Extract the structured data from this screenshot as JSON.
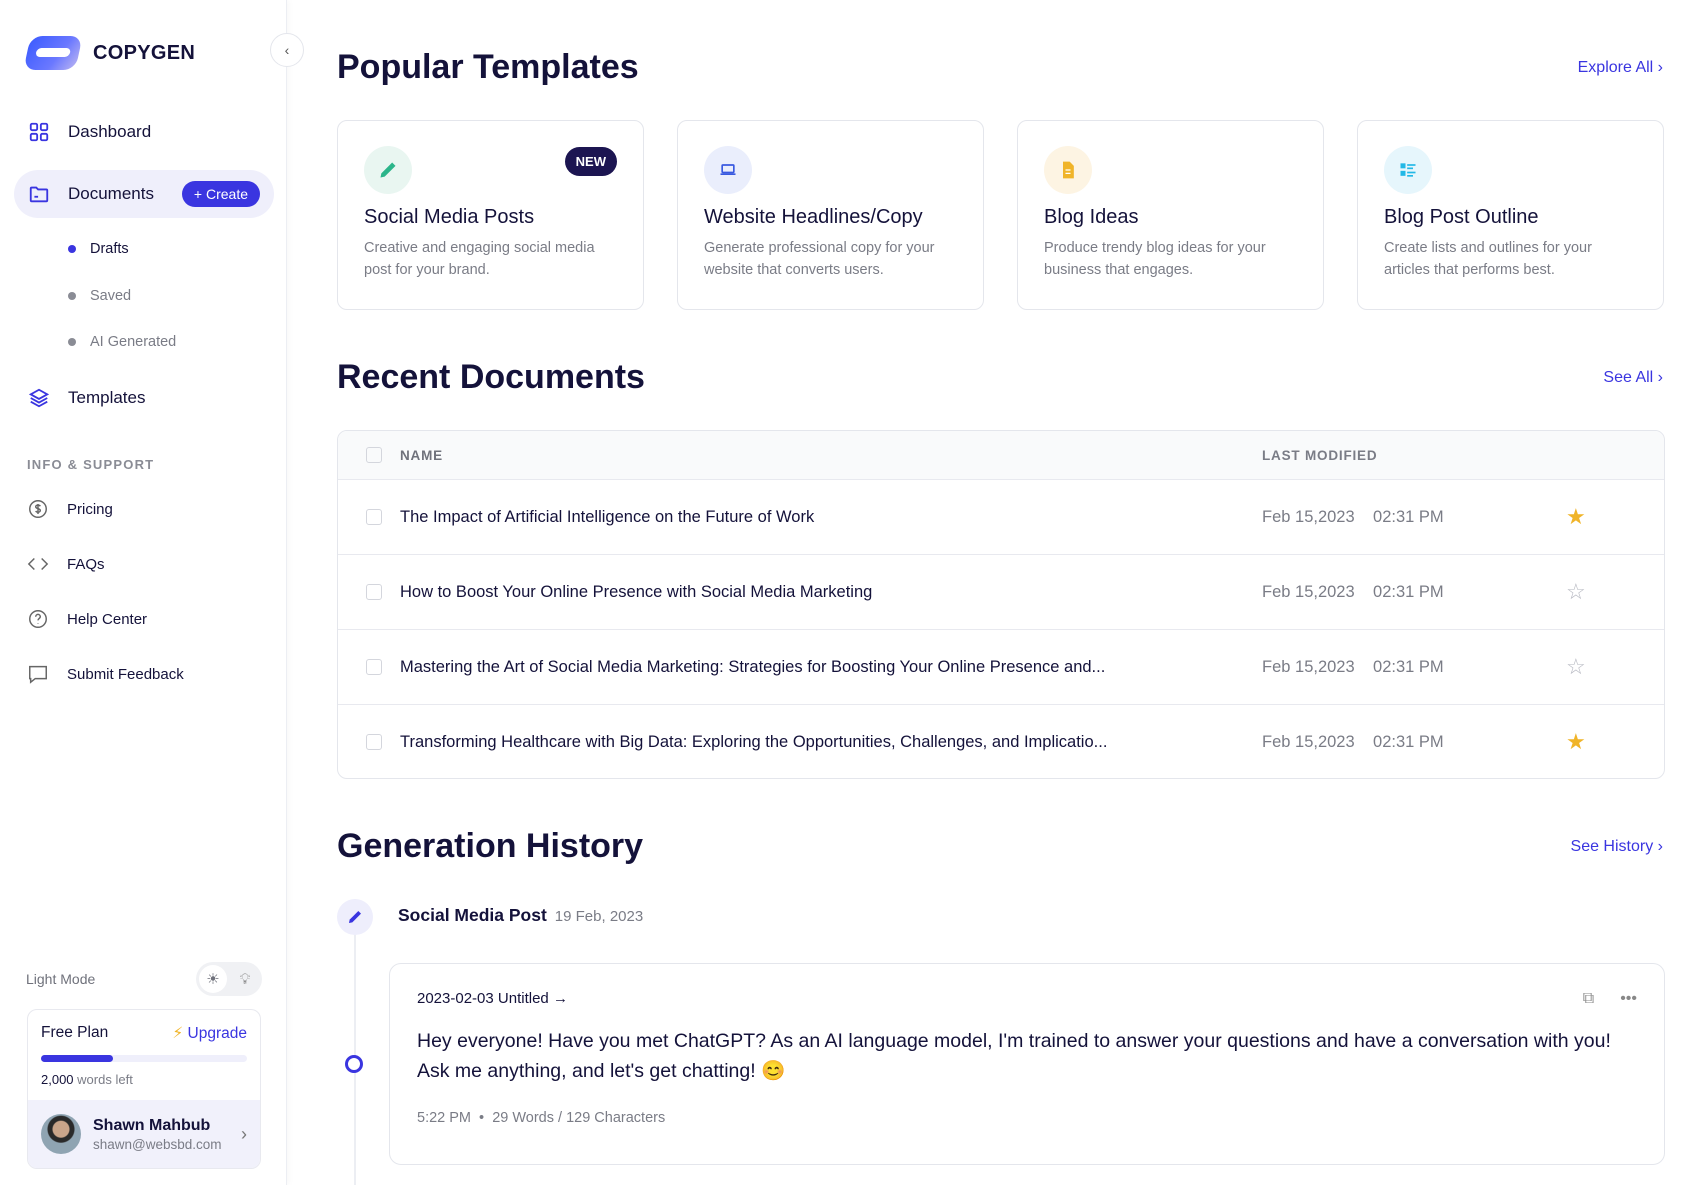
{
  "brand": {
    "name": "COPYGEN"
  },
  "sidebar": {
    "nav": [
      {
        "label": "Dashboard",
        "icon": "grid-icon"
      },
      {
        "label": "Documents",
        "icon": "folder-icon",
        "create_label": "+ Create"
      },
      {
        "label": "Templates",
        "icon": "layers-icon"
      }
    ],
    "subnav": [
      {
        "label": "Drafts",
        "active": true
      },
      {
        "label": "Saved"
      },
      {
        "label": "AI Generated"
      }
    ],
    "section_label": "INFO & SUPPORT",
    "support": [
      {
        "label": "Pricing",
        "icon": "dollar-icon"
      },
      {
        "label": "FAQs",
        "icon": "code-icon"
      },
      {
        "label": "Help Center",
        "icon": "question-icon"
      },
      {
        "label": "Submit Feedback",
        "icon": "message-icon"
      }
    ],
    "mode_label": "Light Mode",
    "plan": {
      "name": "Free Plan",
      "upgrade": "Upgrade",
      "usage_percent": 35,
      "words_count": "2,000",
      "words_suffix": "words left"
    },
    "user": {
      "name": "Shawn Mahbub",
      "email": "shawn@websbd.com"
    }
  },
  "templates": {
    "title": "Popular Templates",
    "more": "Explore All",
    "cards": [
      {
        "title": "Social Media Posts",
        "desc": "Creative and engaging social media post for your brand.",
        "badge": "NEW",
        "icon": "pencil-icon",
        "color": "#2bb58a",
        "bg": "#e9f6f1"
      },
      {
        "title": "Website Headlines/Copy",
        "desc": "Generate professional copy for your website that converts users.",
        "icon": "laptop-icon",
        "color": "#3a5ae0",
        "bg": "#eaeefc"
      },
      {
        "title": "Blog Ideas",
        "desc": "Produce trendy blog ideas for your business that engages.",
        "icon": "document-icon",
        "color": "#f0b429",
        "bg": "#fdf4e3"
      },
      {
        "title": "Blog Post Outline",
        "desc": "Create lists and outlines for your articles that performs best.",
        "icon": "list-icon",
        "color": "#22b8e6",
        "bg": "#e6f6fc"
      }
    ]
  },
  "documents": {
    "title": "Recent Documents",
    "more": "See All",
    "col_name": "NAME",
    "col_modified": "LAST MODIFIED",
    "rows": [
      {
        "name": "The Impact of Artificial Intelligence on the Future of Work",
        "date": "Feb 15,2023",
        "time": "02:31 PM",
        "starred": true
      },
      {
        "name": "How to Boost Your Online Presence with Social Media Marketing",
        "date": "Feb 15,2023",
        "time": "02:31 PM",
        "starred": false
      },
      {
        "name": "Mastering the Art of Social Media Marketing: Strategies for Boosting Your Online Presence and...",
        "date": "Feb 15,2023",
        "time": "02:31 PM",
        "starred": false
      },
      {
        "name": "Transforming Healthcare with Big Data: Exploring the Opportunities, Challenges, and Implicatio...",
        "date": "Feb 15,2023",
        "time": "02:31 PM",
        "starred": true
      }
    ]
  },
  "history": {
    "title": "Generation History",
    "more": "See History",
    "entry": {
      "type": "Social Media Post",
      "date": "19 Feb, 2023",
      "doc_title": "2023-02-03 Untitled",
      "text": "Hey everyone! Have you met ChatGPT? As an AI language model, I'm trained to answer your questions and have a conversation with you! Ask me anything, and let's get chatting! 😊",
      "time": "5:22 PM",
      "stats": "29 Words / 129 Characters"
    }
  }
}
